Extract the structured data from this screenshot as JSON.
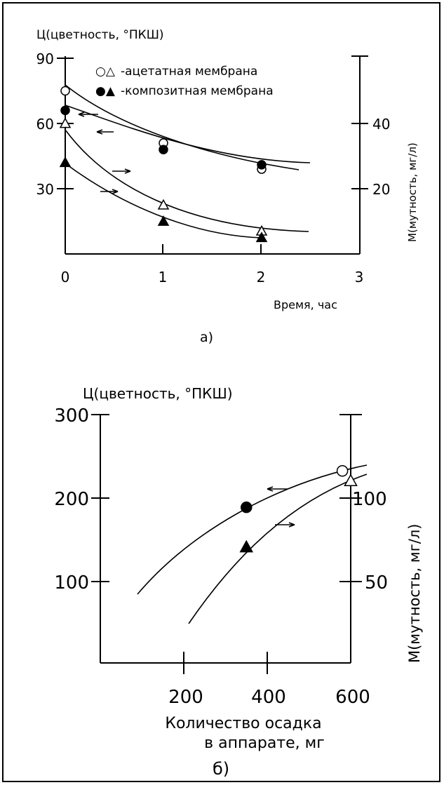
{
  "chart_data": [
    {
      "type": "line",
      "panel_label": "а)",
      "y_left_label": "Ц(цветность, °ПКШ)",
      "y_right_label": "М(мутность, мг/л)",
      "xlabel": "Время, час",
      "xlim": [
        0,
        3
      ],
      "x_ticks": [
        "0",
        "1",
        "2",
        "3"
      ],
      "ylim_left": [
        0,
        90
      ],
      "y_left_ticks": [
        "30",
        "60",
        "90"
      ],
      "ylim_right": [
        0,
        60
      ],
      "y_right_ticks": [
        "20",
        "40"
      ],
      "legend": [
        {
          "symbols": "○△",
          "label": "-ацетатная мембрана"
        },
        {
          "symbols": "●▲",
          "label": "-композитная мембрана"
        }
      ],
      "series": [
        {
          "marker": "circle-open",
          "axis": "left",
          "x": [
            0,
            1,
            2
          ],
          "y": [
            75,
            51,
            39
          ]
        },
        {
          "marker": "circle-filled",
          "axis": "left",
          "x": [
            0,
            1,
            2
          ],
          "y": [
            66,
            48,
            41
          ]
        },
        {
          "marker": "triangle-open",
          "axis": "right",
          "x": [
            0,
            1,
            2
          ],
          "y": [
            40,
            15,
            7
          ]
        },
        {
          "marker": "triangle-filled",
          "axis": "right",
          "x": [
            0,
            1,
            2
          ],
          "y": [
            28,
            10,
            5
          ]
        }
      ]
    },
    {
      "type": "line",
      "panel_label": "б)",
      "y_left_label": "Ц(цветность, °ПКШ)",
      "y_right_label": "М(мутность, мг/л)",
      "xlabel_line1": "Количество осадка",
      "xlabel_line2": "в аппарате, мг",
      "xlim": [
        0,
        600
      ],
      "x_ticks": [
        "200",
        "400",
        "600"
      ],
      "ylim_left": [
        0,
        300
      ],
      "y_left_ticks": [
        "100",
        "200",
        "300"
      ],
      "ylim_right": [
        0,
        150
      ],
      "y_right_ticks": [
        "50",
        "100"
      ],
      "series": [
        {
          "marker": "circle-filled",
          "axis": "left",
          "x": [
            350
          ],
          "y": [
            188
          ]
        },
        {
          "marker": "circle-open",
          "axis": "left",
          "x": [
            580
          ],
          "y": [
            232
          ]
        },
        {
          "marker": "triangle-filled",
          "axis": "right",
          "x": [
            350
          ],
          "y": [
            70
          ]
        },
        {
          "marker": "triangle-open",
          "axis": "right",
          "x": [
            600
          ],
          "y": [
            110
          ]
        }
      ]
    }
  ]
}
